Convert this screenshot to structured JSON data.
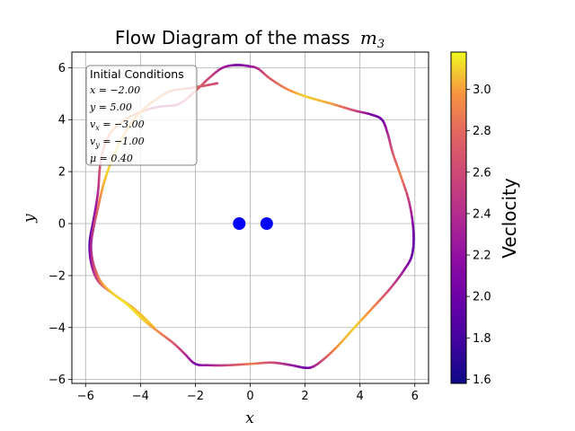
{
  "chart_data": {
    "type": "line",
    "title_text": "Flow Diagram of the mass",
    "title_math": "m",
    "title_math_sub": "3",
    "xlabel": "x",
    "ylabel": "y",
    "xlim": [
      -6.5,
      6.5
    ],
    "ylim": [
      -6.15,
      6.6
    ],
    "xticks": [
      -6,
      -4,
      -2,
      0,
      2,
      4,
      6
    ],
    "xtick_labels": [
      "−6",
      "−4",
      "−2",
      "0",
      "2",
      "4",
      "6"
    ],
    "yticks": [
      -6,
      -4,
      -2,
      0,
      2,
      4,
      6
    ],
    "ytick_labels": [
      "−6",
      "−4",
      "−2",
      "0",
      "2",
      "4",
      "6"
    ],
    "grid": true,
    "masses": [
      {
        "x": -0.4,
        "y": 0.0,
        "color": "#0000ff"
      },
      {
        "x": 0.6,
        "y": 0.0,
        "color": "#0000ff"
      }
    ],
    "trajectory": {
      "x": [
        -3.5,
        -4.2,
        -5.0,
        -5.55,
        -5.8,
        -5.85,
        -5.7,
        -5.55,
        -5.45,
        -5.2,
        -4.7,
        -4.0,
        -3.3,
        -2.6,
        -2.0,
        -1.5,
        -1.0,
        -0.5,
        0.0,
        0.3,
        0.7,
        1.3,
        2.0,
        3.0,
        3.8,
        4.4,
        4.8,
        5.0,
        5.2,
        5.5,
        5.8,
        5.95,
        5.9,
        5.6,
        5.1,
        4.5,
        3.8,
        3.2,
        2.7,
        2.3,
        2.0,
        1.5,
        0.8,
        0.0,
        -0.8,
        -1.5,
        -2.0,
        -2.4,
        -2.8,
        -3.3,
        -3.9,
        -4.5,
        -5.0,
        -5.4,
        -5.6,
        -5.75,
        -5.8,
        -5.7,
        -5.55,
        -5.4,
        -5.2,
        -4.9,
        -4.5,
        -4.0,
        -3.4,
        -2.9,
        -2.3,
        -1.7,
        -1.2
      ],
      "y": [
        -4.0,
        -3.3,
        -2.7,
        -2.2,
        -1.5,
        -0.7,
        0.2,
        1.2,
        2.4,
        3.3,
        3.9,
        4.3,
        4.5,
        4.6,
        5.1,
        5.6,
        6.0,
        6.1,
        6.05,
        5.95,
        5.6,
        5.2,
        4.9,
        4.6,
        4.35,
        4.2,
        4.0,
        3.5,
        2.7,
        1.8,
        0.8,
        -0.3,
        -1.2,
        -1.8,
        -2.5,
        -3.2,
        -4.0,
        -4.7,
        -5.2,
        -5.5,
        -5.55,
        -5.45,
        -5.35,
        -5.4,
        -5.45,
        -5.45,
        -5.4,
        -5.0,
        -4.6,
        -4.2,
        -3.7,
        -3.1,
        -2.7,
        -2.3,
        -1.9,
        -1.4,
        -0.8,
        -0.1,
        0.6,
        1.3,
        2.0,
        2.8,
        3.6,
        4.3,
        4.8,
        5.1,
        5.2,
        5.3,
        5.4
      ],
      "velocity": [
        3.1,
        3.05,
        2.9,
        2.6,
        2.2,
        1.9,
        2.1,
        2.4,
        2.7,
        2.9,
        3.0,
        2.8,
        2.4,
        2.6,
        2.8,
        2.6,
        2.3,
        2.1,
        2.2,
        2.4,
        2.7,
        2.9,
        3.1,
        3.0,
        2.6,
        2.1,
        2.0,
        2.3,
        2.7,
        2.9,
        2.5,
        2.0,
        1.95,
        2.2,
        2.6,
        2.9,
        3.1,
        3.0,
        2.7,
        2.3,
        2.0,
        2.2,
        2.6,
        2.9,
        2.6,
        2.3,
        2.1,
        2.4,
        2.7,
        2.9,
        3.1,
        3.15,
        3.1,
        3.0,
        2.8,
        2.5,
        2.3,
        2.5,
        2.8,
        3.0,
        3.1,
        3.1,
        3.05,
        3.0,
        2.95,
        2.9,
        2.8,
        2.7,
        2.6
      ]
    },
    "colorbar": {
      "label": "Veclocity",
      "range": [
        1.58,
        3.18
      ],
      "ticks": [
        1.6,
        1.8,
        2.0,
        2.2,
        2.4,
        2.6,
        2.8,
        3.0
      ],
      "tick_labels": [
        "1.6",
        "1.8",
        "2.0",
        "2.2",
        "2.4",
        "2.6",
        "2.8",
        "3.0"
      ],
      "colormap": "plasma"
    },
    "initial_conditions": {
      "title": "Initial Conditions",
      "lines": [
        {
          "base": "x",
          "sub": "",
          "value": " = −2.00"
        },
        {
          "base": "y",
          "sub": "",
          "value": " = 5.00"
        },
        {
          "base": "v",
          "sub": "x",
          "value": " = −3.00"
        },
        {
          "base": "v",
          "sub": "y",
          "value": " = −1.00"
        },
        {
          "base": "μ",
          "sub": "",
          "value": " = 0.40"
        }
      ]
    }
  }
}
